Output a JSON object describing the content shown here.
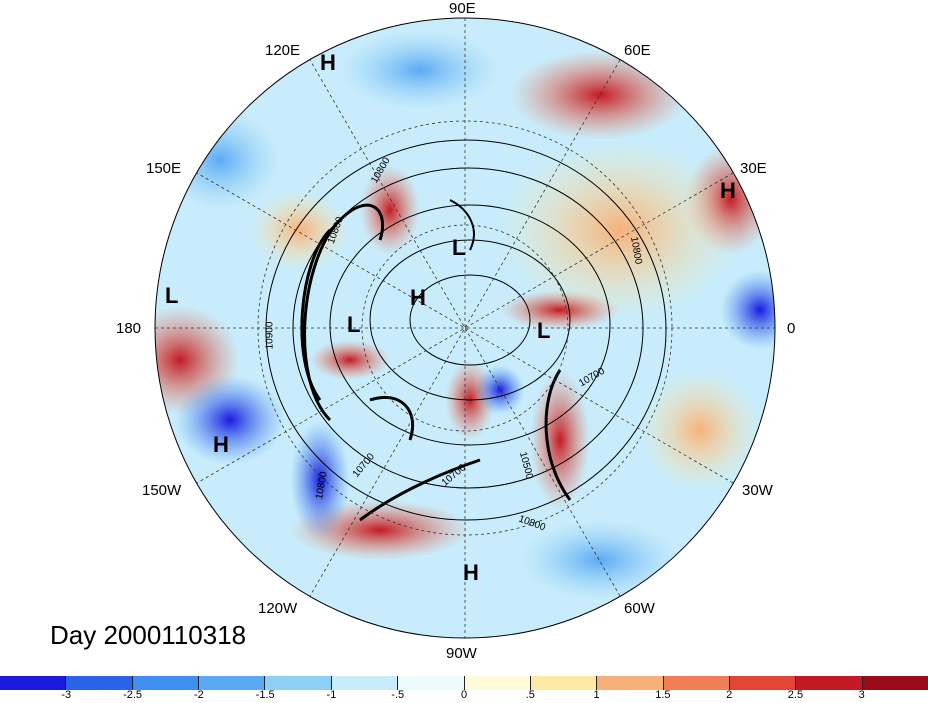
{
  "map": {
    "projection": "polar stereographic (north pole)",
    "field": "500 hPa geopotential height contours over colored anomaly field",
    "longitude_labels": [
      {
        "text": "90E",
        "pos": "top"
      },
      {
        "text": "60E",
        "pos": "top-right"
      },
      {
        "text": "30E",
        "pos": "right-upper"
      },
      {
        "text": "0",
        "pos": "right"
      },
      {
        "text": "30W",
        "pos": "right-lower"
      },
      {
        "text": "60W",
        "pos": "bottom-right"
      },
      {
        "text": "90W",
        "pos": "bottom"
      },
      {
        "text": "120W",
        "pos": "bottom-left"
      },
      {
        "text": "150W",
        "pos": "left-lower"
      },
      {
        "text": "180",
        "pos": "left"
      },
      {
        "text": "150E",
        "pos": "left-upper"
      },
      {
        "text": "120E",
        "pos": "top-left"
      }
    ],
    "pressure_centers": [
      "H",
      "H",
      "L",
      "L",
      "H",
      "L",
      "L",
      "H",
      "H"
    ],
    "contour_labels": [
      "10800",
      "10800",
      "10800",
      "10900",
      "10700",
      "10700",
      "10800",
      "10500",
      "10700",
      "10800"
    ],
    "day_label": "Day 2000110318"
  },
  "colorbar": {
    "tick_labels": [
      "-3",
      "-2.5",
      "-2",
      "-1.5",
      "-1",
      "-.5",
      "0",
      ".5",
      "1",
      "1.5",
      "2",
      "2.5",
      "3"
    ],
    "colors": [
      "#1a1adf",
      "#2a63e6",
      "#3f8ef0",
      "#5ba9f4",
      "#8dcff7",
      "#c8ecfb",
      "#eefbfd",
      "#fffad8",
      "#fde9a4",
      "#f6b07a",
      "#ef7d56",
      "#e04536",
      "#c21a25",
      "#9c0b1a"
    ]
  }
}
